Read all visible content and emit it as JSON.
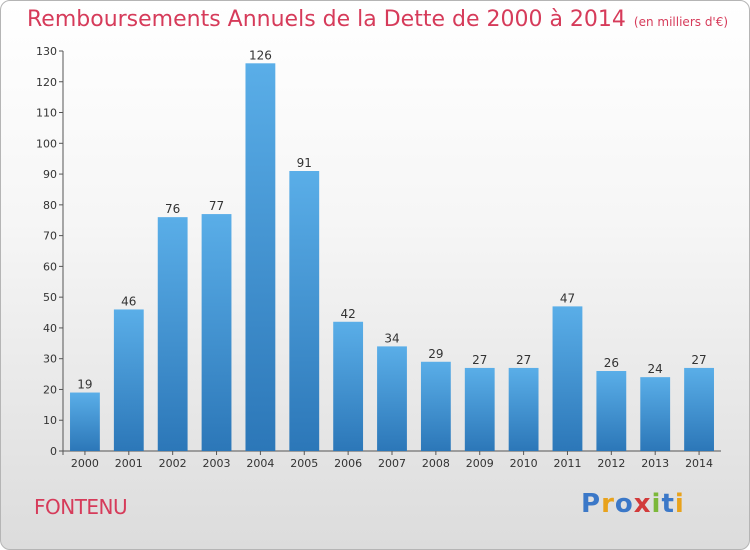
{
  "title": "Remboursements Annuels de la Dette de 2000 à 2014",
  "unit": "(en milliers d'€)",
  "commune": "FONTENU",
  "logo": {
    "letters": [
      "P",
      "r",
      "o",
      "x",
      "i",
      "t",
      "i"
    ],
    "colors": [
      "#3b78c8",
      "#e8a21c",
      "#3b78c8",
      "#d23a3a",
      "#7cb83a",
      "#3b78c8",
      "#e8a21c"
    ]
  },
  "colors": {
    "bar_top": "#5aaee8",
    "bar_bottom": "#2c77b8",
    "title": "#d63b5a"
  },
  "chart_data": {
    "type": "bar",
    "categories": [
      "2000",
      "2001",
      "2002",
      "2003",
      "2004",
      "2005",
      "2006",
      "2007",
      "2008",
      "2009",
      "2010",
      "2011",
      "2012",
      "2013",
      "2014"
    ],
    "values": [
      19,
      46,
      76,
      77,
      126,
      91,
      42,
      34,
      29,
      27,
      27,
      47,
      26,
      24,
      27
    ],
    "ylim": [
      0,
      130
    ],
    "yticks": [
      0,
      10,
      20,
      30,
      40,
      50,
      60,
      70,
      80,
      90,
      100,
      110,
      120,
      130
    ],
    "grid": false,
    "legend": "none"
  }
}
